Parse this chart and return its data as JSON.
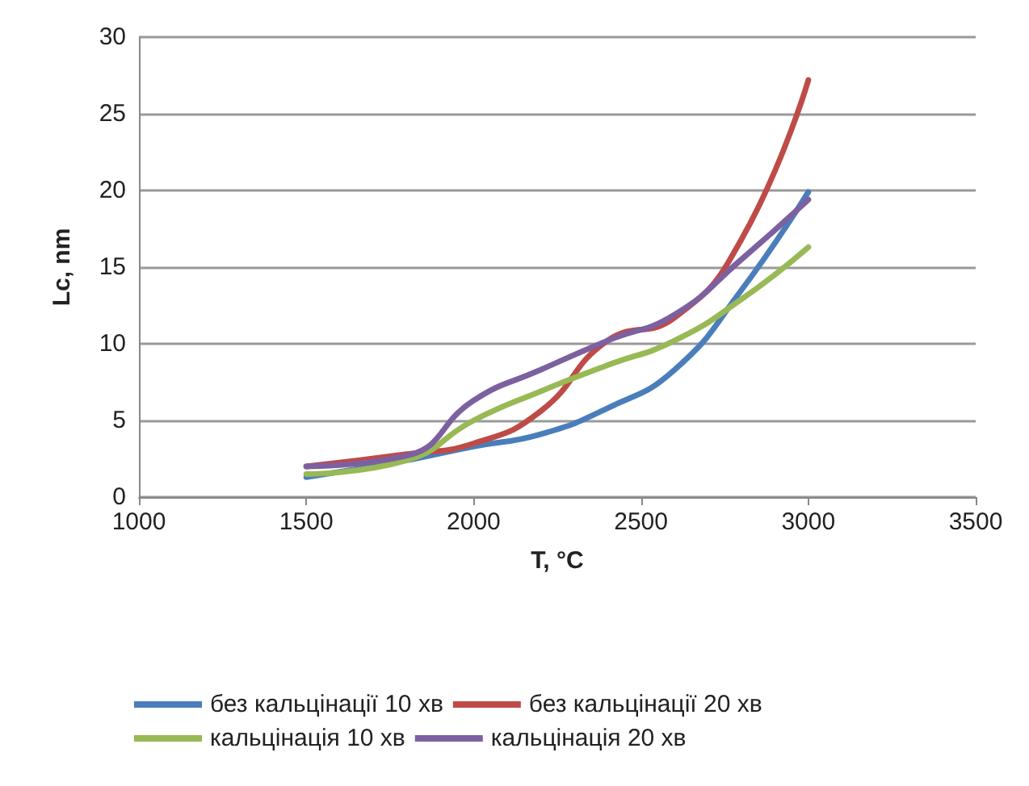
{
  "chart_data": {
    "type": "line",
    "xlabel": "T, °C",
    "ylabel": "Lc, nm",
    "x": [
      1500,
      1800,
      2000,
      2200,
      2400,
      2600,
      2800,
      3000
    ],
    "series": [
      {
        "name": "без кальцінації 10 хв",
        "color": "#4a7ebb",
        "values": [
          1.3,
          2.4,
          3.3,
          4.1,
          5.8,
          8.3,
          13.5,
          19.9
        ]
      },
      {
        "name": "без кальцінації 20 хв",
        "color": "#be4b48",
        "values": [
          2.0,
          2.8,
          3.5,
          5.6,
          10.2,
          11.7,
          16.8,
          27.2
        ]
      },
      {
        "name": "кальцінація 10 хв",
        "color": "#98b954",
        "values": [
          1.5,
          2.4,
          5.0,
          6.9,
          8.6,
          10.2,
          12.9,
          16.3
        ]
      },
      {
        "name": "кальцінація 20 хв",
        "color": "#7d60a0",
        "values": [
          2.0,
          2.7,
          6.3,
          8.3,
          10.2,
          11.9,
          15.5,
          19.4
        ]
      }
    ],
    "xlim": [
      1000,
      3500
    ],
    "xticks": [
      1000,
      1500,
      2000,
      2500,
      3000,
      3500
    ],
    "ylim": [
      0,
      30
    ],
    "yticks": [
      0,
      5,
      10,
      15,
      20,
      25,
      30
    ],
    "grid": "y",
    "legend": "bottom",
    "marker": "none",
    "line_style": "solid"
  }
}
